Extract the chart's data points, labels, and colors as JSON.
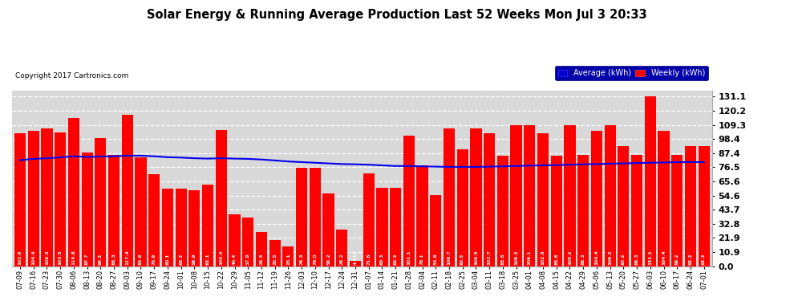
{
  "title": "Solar Energy & Running Average Production Last 52 Weeks Mon Jul 3 20:33",
  "copyright": "Copyright 2017 Cartronics.com",
  "bar_color": "#ff0000",
  "avg_line_color": "#0000ee",
  "background_color": "#ffffff",
  "plot_bg_color": "#d8d8d8",
  "grid_color": "#ffffff",
  "ylim": [
    0.0,
    136.0
  ],
  "yticks": [
    0.0,
    10.9,
    21.9,
    32.8,
    43.7,
    54.6,
    65.6,
    76.5,
    87.4,
    98.4,
    109.3,
    120.2,
    131.1
  ],
  "categories": [
    "07-09",
    "07-16",
    "07-23",
    "07-30",
    "08-06",
    "08-13",
    "08-20",
    "08-27",
    "09-03",
    "09-10",
    "09-17",
    "09-24",
    "10-01",
    "10-08",
    "10-15",
    "10-22",
    "10-29",
    "11-05",
    "11-12",
    "11-19",
    "11-26",
    "12-03",
    "12-10",
    "12-17",
    "12-24",
    "12-31",
    "01-07",
    "01-14",
    "01-21",
    "01-28",
    "02-04",
    "02-11",
    "02-18",
    "02-25",
    "03-04",
    "03-11",
    "03-18",
    "03-25",
    "04-01",
    "04-08",
    "04-15",
    "04-22",
    "04-29",
    "05-06",
    "05-13",
    "05-20",
    "05-27",
    "06-03",
    "06-10",
    "06-17",
    "06-24",
    "07-01"
  ],
  "weekly_values": [
    102.9,
    104.4,
    106.5,
    103.5,
    114.8,
    87.7,
    99.3,
    86.3,
    117.4,
    83.9,
    70.9,
    60.1,
    60.2,
    58.9,
    63.1,
    105.4,
    40.4,
    37.9,
    26.5,
    20.5,
    15.1,
    76.3,
    76.0,
    56.2,
    28.2,
    4.3,
    71.6,
    60.3,
    60.3,
    101.1,
    78.1,
    54.8,
    106.7,
    90.5,
    106.5,
    102.7,
    85.6,
    109.2,
    109.1,
    102.6,
    85.6,
    109.2,
    86.3,
    104.4,
    109.2,
    93.2,
    86.3,
    131.1,
    104.4,
    86.2,
    93.2,
    93.2
  ],
  "val_labels": [
    "102.9",
    "104.4",
    "106.5",
    "103.5",
    "114.8",
    "87.7",
    "99.3",
    "86.3",
    "117.4",
    "83.9",
    "70.9",
    "60.1",
    "60.2",
    "58.9",
    "63.1",
    "105.4",
    "40.4",
    "37.9",
    "26.5",
    "20.5",
    "15.1",
    "76.3",
    "76.0",
    "56.2",
    "28.2",
    "4.312",
    "71.6",
    "60.3",
    "60.3",
    "101.1",
    "78.1",
    "54.8",
    "106.7",
    "90.5",
    "106.5",
    "102.7",
    "85.6",
    "109.2",
    "109.1",
    "102.6",
    "85.6",
    "109.2",
    "86.3",
    "104.4",
    "109.2",
    "93.2",
    "86.3",
    "131.1",
    "104.4",
    "86.2",
    "93.2",
    "93.2"
  ],
  "avg_values": [
    82.0,
    83.0,
    83.5,
    84.2,
    85.0,
    84.5,
    84.8,
    85.0,
    85.5,
    85.5,
    85.0,
    84.3,
    84.0,
    83.5,
    83.2,
    83.5,
    83.2,
    83.0,
    82.5,
    81.8,
    81.0,
    80.5,
    80.0,
    79.5,
    79.0,
    78.8,
    78.5,
    78.0,
    77.5,
    77.5,
    77.2,
    77.0,
    76.8,
    76.8,
    76.8,
    77.0,
    77.2,
    77.5,
    77.8,
    78.0,
    78.2,
    78.5,
    78.8,
    79.0,
    79.3,
    79.5,
    79.8,
    80.0,
    80.2,
    80.5,
    80.5,
    80.5
  ],
  "legend_avg_color": "#0000cc",
  "legend_weekly_color": "#ff0000",
  "legend_avg_label": "Average (kWh)",
  "legend_weekly_label": "Weekly (kWh)"
}
